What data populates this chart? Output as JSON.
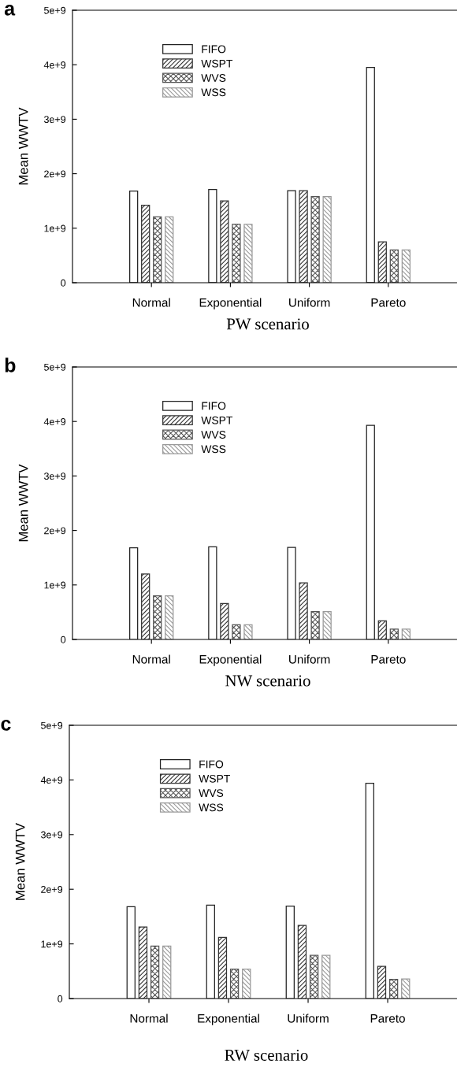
{
  "chart_data": [
    {
      "type": "bar",
      "title": "a",
      "xlabel": "PW scenario",
      "ylabel": "Mean WWTV",
      "categories": [
        "Normal",
        "Exponential",
        "Uniform",
        "Pareto"
      ],
      "ylim": [
        0,
        5000000000.0
      ],
      "yticks": [
        0,
        {
          "value": 1000000000.0,
          "label": "1e+9"
        },
        {
          "value": 2000000000.0,
          "label": "2e+9"
        },
        {
          "value": 3000000000.0,
          "label": "3e+9"
        },
        {
          "value": 4000000000.0,
          "label": "4e+9"
        },
        {
          "value": 5000000000.0,
          "label": "5e+9"
        }
      ],
      "legend": "top left",
      "grid": false,
      "series": [
        {
          "name": "FIFO",
          "color": "#222222",
          "values": [
            1680000000.0,
            1710000000.0,
            1690000000.0,
            3950000000.0
          ]
        },
        {
          "name": "WSPT",
          "color": "#333333",
          "values": [
            1420000000.0,
            1500000000.0,
            1690000000.0,
            750000000.0
          ]
        },
        {
          "name": "WVS",
          "color": "#555555",
          "values": [
            1210000000.0,
            1070000000.0,
            1580000000.0,
            600000000.0
          ]
        },
        {
          "name": "WSS",
          "color": "#999999",
          "values": [
            1210000000.0,
            1070000000.0,
            1580000000.0,
            600000000.0
          ]
        }
      ]
    },
    {
      "type": "bar",
      "title": "b",
      "xlabel": "NW scenario",
      "ylabel": "Mean WWTV",
      "categories": [
        "Normal",
        "Exponential",
        "Uniform",
        "Pareto"
      ],
      "ylim": [
        0,
        5000000000.0
      ],
      "yticks": [
        0,
        {
          "value": 1000000000.0,
          "label": "1e+9"
        },
        {
          "value": 2000000000.0,
          "label": "2e+9"
        },
        {
          "value": 3000000000.0,
          "label": "3e+9"
        },
        {
          "value": 4000000000.0,
          "label": "4e+9"
        },
        {
          "value": 5000000000.0,
          "label": "5e+9"
        }
      ],
      "legend": "top left",
      "grid": false,
      "series": [
        {
          "name": "FIFO",
          "color": "#222222",
          "values": [
            1680000000.0,
            1700000000.0,
            1690000000.0,
            3930000000.0
          ]
        },
        {
          "name": "WSPT",
          "color": "#333333",
          "values": [
            1200000000.0,
            660000000.0,
            1040000000.0,
            340000000.0
          ]
        },
        {
          "name": "WVS",
          "color": "#555555",
          "values": [
            800000000.0,
            270000000.0,
            510000000.0,
            190000000.0
          ]
        },
        {
          "name": "WSS",
          "color": "#999999",
          "values": [
            800000000.0,
            270000000.0,
            510000000.0,
            190000000.0
          ]
        }
      ]
    },
    {
      "type": "bar",
      "title": "c",
      "xlabel": "RW scenario",
      "ylabel": "Mean WWTV",
      "categories": [
        "Normal",
        "Exponential",
        "Uniform",
        "Pareto"
      ],
      "ylim": [
        0,
        5000000000.0
      ],
      "yticks": [
        0,
        {
          "value": 1000000000.0,
          "label": "1e+9"
        },
        {
          "value": 2000000000.0,
          "label": "2e+9"
        },
        {
          "value": 3000000000.0,
          "label": "3e+9"
        },
        {
          "value": 4000000000.0,
          "label": "4e+9"
        },
        {
          "value": 5000000000.0,
          "label": "5e+9"
        }
      ],
      "legend": "top left",
      "grid": false,
      "series": [
        {
          "name": "FIFO",
          "color": "#222222",
          "values": [
            1680000000.0,
            1710000000.0,
            1690000000.0,
            3940000000.0
          ]
        },
        {
          "name": "WSPT",
          "color": "#333333",
          "values": [
            1310000000.0,
            1120000000.0,
            1340000000.0,
            590000000.0
          ]
        },
        {
          "name": "WVS",
          "color": "#555555",
          "values": [
            960000000.0,
            540000000.0,
            790000000.0,
            350000000.0
          ]
        },
        {
          "name": "WSS",
          "color": "#999999",
          "values": [
            960000000.0,
            540000000.0,
            790000000.0,
            360000000.0
          ]
        }
      ]
    }
  ]
}
